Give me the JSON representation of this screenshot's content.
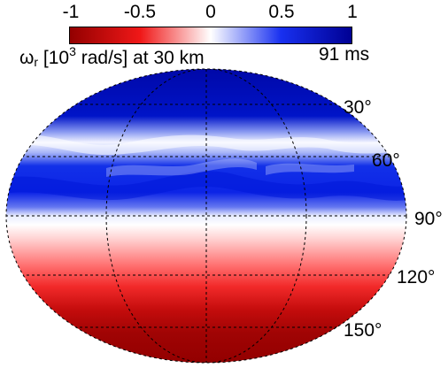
{
  "colorbar": {
    "ticks": [
      "-1",
      "-0.5",
      "0",
      "0.5",
      "1"
    ],
    "colors": {
      "negative": "#8b0000",
      "zero": "#ffffff",
      "positive": "#00008b"
    }
  },
  "title": {
    "symbol": "ω",
    "subscript": "r",
    "before_sup": " [10",
    "superscript": "3",
    "after_sup": " rad/s] at 30 km"
  },
  "time_label": "91 ms",
  "latitude_labels": [
    "30°",
    "60°",
    "90°",
    "120°",
    "150°"
  ],
  "map_data": {
    "projection": "Hammersley–Aitoff",
    "field": "radial vorticity",
    "scale_range": [
      -1,
      1
    ],
    "bands": [
      {
        "colatitude": [
          0,
          60
        ],
        "value": "positive (≈0.9–1)"
      },
      {
        "colatitude": [
          40,
          50
        ],
        "value": "near zero streak"
      },
      {
        "colatitude": [
          60,
          80
        ],
        "value": "positive (≈0.8–1)"
      },
      {
        "colatitude": [
          85,
          95
        ],
        "value": "near zero"
      },
      {
        "colatitude": [
          100,
          180
        ],
        "value": "negative (≈-0.3 to -1)"
      }
    ]
  }
}
